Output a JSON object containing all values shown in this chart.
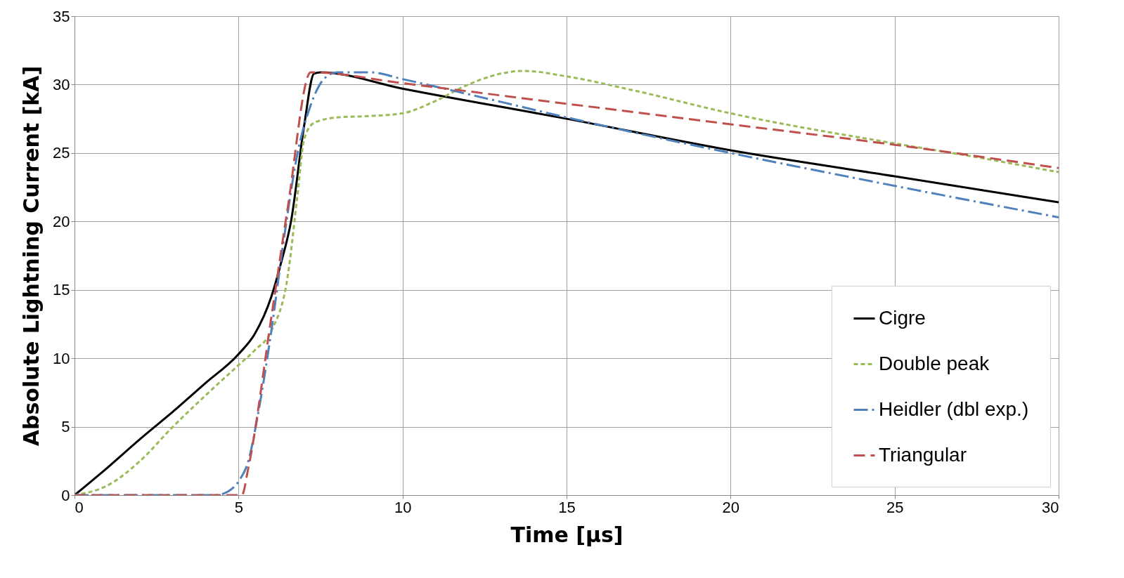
{
  "chart_data": {
    "type": "line",
    "xlabel": "Time [µs]",
    "ylabel": "Absolute Lightning Current [kA]",
    "xlim": [
      0,
      30
    ],
    "ylim": [
      0,
      35
    ],
    "xticks": [
      0,
      5,
      10,
      15,
      20,
      25,
      30
    ],
    "yticks": [
      0,
      5,
      10,
      15,
      20,
      25,
      30,
      35
    ],
    "grid": true,
    "legend": "bottom right",
    "marker": "none",
    "series": [
      {
        "name": "Cigre",
        "color": "#000000",
        "line_style": "solid",
        "x": [
          0,
          1,
          2,
          3,
          4,
          5,
          5.5,
          6,
          6.3,
          6.6,
          7,
          7.3,
          7.5,
          10,
          15,
          20,
          25,
          30
        ],
        "values": [
          0,
          2,
          4.1,
          6.1,
          8.2,
          10.3,
          11.8,
          14.5,
          17,
          20,
          27,
          30.8,
          30.9,
          29.7,
          27.5,
          25.2,
          23.3,
          21.4
        ]
      },
      {
        "name": "Double peak",
        "color": "#9bbb59",
        "line_style": "dotted",
        "x": [
          0,
          1,
          2,
          3,
          4,
          5,
          5.5,
          6,
          6.5,
          6.8,
          7,
          7.3,
          8,
          9,
          10,
          11,
          12,
          13,
          13.7,
          15,
          17,
          20,
          25,
          27,
          30
        ],
        "values": [
          0,
          0.7,
          2.5,
          5,
          7.3,
          9.5,
          10.6,
          12,
          16,
          22,
          26,
          27.2,
          27.6,
          27.7,
          27.9,
          28.8,
          30,
          30.8,
          31,
          30.6,
          29.6,
          27.9,
          25.7,
          24.9,
          23.6
        ]
      },
      {
        "name": "Heidler (dbl exp.)",
        "color": "#4f81bd",
        "line_style": "dashdot",
        "x": [
          0,
          4.3,
          4.7,
          5,
          5.3,
          5.6,
          6,
          6.4,
          6.8,
          7.2,
          7.6,
          8,
          9,
          10,
          12,
          15,
          20,
          25,
          30
        ],
        "values": [
          0,
          0,
          0.3,
          1,
          2.5,
          6,
          12,
          19,
          25,
          28.5,
          30.4,
          30.9,
          30.9,
          30.4,
          29.3,
          27.6,
          25,
          22.6,
          20.3
        ]
      },
      {
        "name": "Triangular",
        "color": "#c0504d",
        "line_style": "dashed",
        "x": [
          0,
          5.1,
          5.3,
          6,
          6.5,
          7.2,
          10,
          15,
          20,
          25,
          30
        ],
        "values": [
          0,
          0,
          2,
          13,
          21,
          30.9,
          30.1,
          28.6,
          27.1,
          25.6,
          23.9
        ]
      }
    ]
  }
}
